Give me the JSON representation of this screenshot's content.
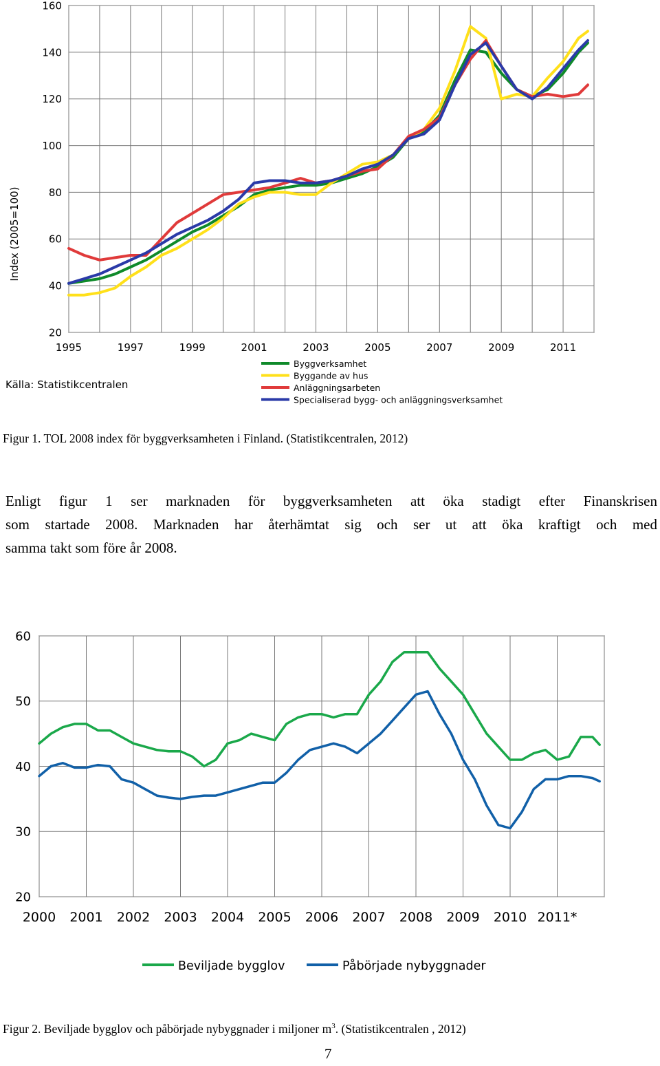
{
  "figure1": {
    "chart_data": {
      "type": "line",
      "ylabel": "Index (2005=100)",
      "ylim": [
        20,
        160
      ],
      "yticks": [
        20,
        40,
        60,
        80,
        100,
        120,
        140,
        160
      ],
      "xlim": [
        1995,
        2012
      ],
      "xticks": [
        "1995",
        "1997",
        "1999",
        "2001",
        "2003",
        "2005",
        "2007",
        "2009",
        "2011"
      ],
      "source": "Källa: Statistikcentralen",
      "grid": true,
      "legend_position": "bottom-right",
      "series": [
        {
          "name": "Byggverksamhet",
          "color": "#0f8a2a",
          "x": [
            1995.0,
            1995.5,
            1996.0,
            1996.5,
            1997.0,
            1997.5,
            1998.0,
            1998.5,
            1999.0,
            1999.5,
            2000.0,
            2000.5,
            2001.0,
            2001.5,
            2002.0,
            2002.5,
            2003.0,
            2003.5,
            2004.0,
            2004.5,
            2005.0,
            2005.5,
            2006.0,
            2006.5,
            2007.0,
            2007.5,
            2008.0,
            2008.5,
            2009.0,
            2009.5,
            2010.0,
            2010.5,
            2011.0,
            2011.5,
            2011.8
          ],
          "values": [
            41,
            42,
            43,
            45,
            48,
            51,
            55,
            59,
            63,
            66,
            70,
            74,
            79,
            81,
            82,
            83,
            83,
            84,
            86,
            88,
            91,
            95,
            103,
            106,
            113,
            128,
            141,
            140,
            131,
            124,
            121,
            124,
            131,
            140,
            144
          ]
        },
        {
          "name": "Byggande av hus",
          "color": "#ffe01a",
          "x": [
            1995.0,
            1995.5,
            1996.0,
            1996.5,
            1997.0,
            1997.5,
            1998.0,
            1998.5,
            1999.0,
            1999.5,
            2000.0,
            2000.5,
            2001.0,
            2001.5,
            2002.0,
            2002.5,
            2003.0,
            2003.5,
            2004.0,
            2004.5,
            2005.0,
            2005.5,
            2006.0,
            2006.5,
            2007.0,
            2007.5,
            2008.0,
            2008.5,
            2009.0,
            2009.5,
            2010.0,
            2010.5,
            2011.0,
            2011.5,
            2011.8
          ],
          "values": [
            36,
            36,
            37,
            39,
            44,
            48,
            53,
            56,
            60,
            64,
            69,
            75,
            78,
            80,
            80,
            79,
            79,
            84,
            88,
            92,
            93,
            96,
            103,
            107,
            116,
            132,
            151,
            146,
            120,
            122,
            121,
            129,
            136,
            146,
            149
          ]
        },
        {
          "name": "Anläggningsarbeten",
          "color": "#e03a3a",
          "x": [
            1995.0,
            1995.5,
            1996.0,
            1996.5,
            1997.0,
            1997.5,
            1998.0,
            1998.5,
            1999.0,
            1999.5,
            2000.0,
            2000.5,
            2001.0,
            2001.5,
            2002.0,
            2002.5,
            2003.0,
            2003.5,
            2004.0,
            2004.5,
            2005.0,
            2005.5,
            2006.0,
            2006.5,
            2007.0,
            2007.5,
            2008.0,
            2008.5,
            2009.0,
            2009.5,
            2010.0,
            2010.5,
            2011.0,
            2011.5,
            2011.8
          ],
          "values": [
            56,
            53,
            51,
            52,
            53,
            53,
            60,
            67,
            71,
            75,
            79,
            80,
            81,
            82,
            84,
            86,
            84,
            85,
            87,
            89,
            90,
            96,
            104,
            107,
            112,
            126,
            137,
            145,
            134,
            124,
            121,
            122,
            121,
            122,
            126
          ]
        },
        {
          "name": "Specialiserad bygg- och anläggningsverksamhet",
          "color": "#2a3aa8",
          "x": [
            1995.0,
            1995.5,
            1996.0,
            1996.5,
            1997.0,
            1997.5,
            1998.0,
            1998.5,
            1999.0,
            1999.5,
            2000.0,
            2000.5,
            2001.0,
            2001.5,
            2002.0,
            2002.5,
            2003.0,
            2003.5,
            2004.0,
            2004.5,
            2005.0,
            2005.5,
            2006.0,
            2006.5,
            2007.0,
            2007.5,
            2008.0,
            2008.5,
            2009.0,
            2009.5,
            2010.0,
            2010.5,
            2011.0,
            2011.5,
            2011.8
          ],
          "values": [
            41,
            43,
            45,
            48,
            51,
            54,
            58,
            62,
            65,
            68,
            72,
            77,
            84,
            85,
            85,
            84,
            84,
            85,
            87,
            90,
            92,
            96,
            103,
            105,
            111,
            126,
            139,
            144,
            134,
            124,
            120,
            125,
            133,
            141,
            145
          ]
        }
      ]
    },
    "caption": "Figur 1. TOL 2008 index för byggverksamheten i Finland. (Statistikcentralen, 2012)"
  },
  "paragraph": {
    "lines": [
      "Enligt figur 1 ser marknaden för byggverksamheten att öka stadigt efter Finanskrisen",
      "som startade 2008. Marknaden har återhämtat sig och ser ut att öka kraftigt och med",
      "samma takt som före år 2008."
    ]
  },
  "figure2": {
    "chart_data": {
      "type": "line",
      "ylim": [
        20,
        60
      ],
      "yticks": [
        20,
        30,
        40,
        50,
        60
      ],
      "xlim": [
        2000,
        2012
      ],
      "xticks": [
        "2000",
        "2001",
        "2002",
        "2003",
        "2004",
        "2005",
        "2006",
        "2007",
        "2008",
        "2009",
        "2010",
        "2011*"
      ],
      "grid": true,
      "legend_position": "bottom",
      "series": [
        {
          "name": "Beviljade bygglov",
          "color": "#1aa84a",
          "x": [
            2000.0,
            2000.25,
            2000.5,
            2000.75,
            2001.0,
            2001.25,
            2001.5,
            2001.75,
            2002.0,
            2002.25,
            2002.5,
            2002.75,
            2003.0,
            2003.25,
            2003.5,
            2003.75,
            2004.0,
            2004.25,
            2004.5,
            2004.75,
            2005.0,
            2005.25,
            2005.5,
            2005.75,
            2006.0,
            2006.25,
            2006.5,
            2006.75,
            2007.0,
            2007.25,
            2007.5,
            2007.75,
            2008.0,
            2008.25,
            2008.5,
            2008.75,
            2009.0,
            2009.25,
            2009.5,
            2009.75,
            2010.0,
            2010.25,
            2010.5,
            2010.75,
            2011.0,
            2011.25,
            2011.5,
            2011.75,
            2011.9
          ],
          "values": [
            43.5,
            45,
            46,
            46.5,
            46.5,
            45.5,
            45.5,
            44.5,
            43.5,
            43,
            42.5,
            42.3,
            42.3,
            41.5,
            40,
            41,
            43.5,
            44,
            45,
            44.5,
            44,
            46.5,
            47.5,
            48,
            48,
            47.5,
            48,
            48,
            51,
            53,
            56,
            57.5,
            57.5,
            57.5,
            55,
            53,
            51,
            48,
            45,
            43,
            41,
            41,
            42,
            42.5,
            41,
            41.5,
            44.5,
            44.5,
            43.3
          ]
        },
        {
          "name": "Påbörjade nybyggnader",
          "color": "#1160a8",
          "x": [
            2000.0,
            2000.25,
            2000.5,
            2000.75,
            2001.0,
            2001.25,
            2001.5,
            2001.75,
            2002.0,
            2002.25,
            2002.5,
            2002.75,
            2003.0,
            2003.25,
            2003.5,
            2003.75,
            2004.0,
            2004.25,
            2004.5,
            2004.75,
            2005.0,
            2005.25,
            2005.5,
            2005.75,
            2006.0,
            2006.25,
            2006.5,
            2006.75,
            2007.0,
            2007.25,
            2007.5,
            2007.75,
            2008.0,
            2008.25,
            2008.5,
            2008.75,
            2009.0,
            2009.25,
            2009.5,
            2009.75,
            2010.0,
            2010.25,
            2010.5,
            2010.75,
            2011.0,
            2011.25,
            2011.5,
            2011.75,
            2011.9
          ],
          "values": [
            38.5,
            40,
            40.5,
            39.8,
            39.8,
            40.2,
            40,
            38,
            37.5,
            36.5,
            35.5,
            35.2,
            35,
            35.3,
            35.5,
            35.5,
            36,
            36.5,
            37,
            37.5,
            37.5,
            39,
            41,
            42.5,
            43,
            43.5,
            43,
            42,
            43.5,
            45,
            47,
            49,
            51,
            51.5,
            48,
            45,
            41,
            38,
            34,
            31,
            30.5,
            33,
            36.5,
            38,
            38,
            38.5,
            38.5,
            38.2,
            37.7
          ]
        }
      ]
    },
    "caption_before_sup": "Figur 2. Beviljade bygglov och påbörjade nybyggnader i miljoner m",
    "caption_sup": "3",
    "caption_after_sup": ". (Statistikcentralen , 2012)"
  },
  "page_number": "7"
}
